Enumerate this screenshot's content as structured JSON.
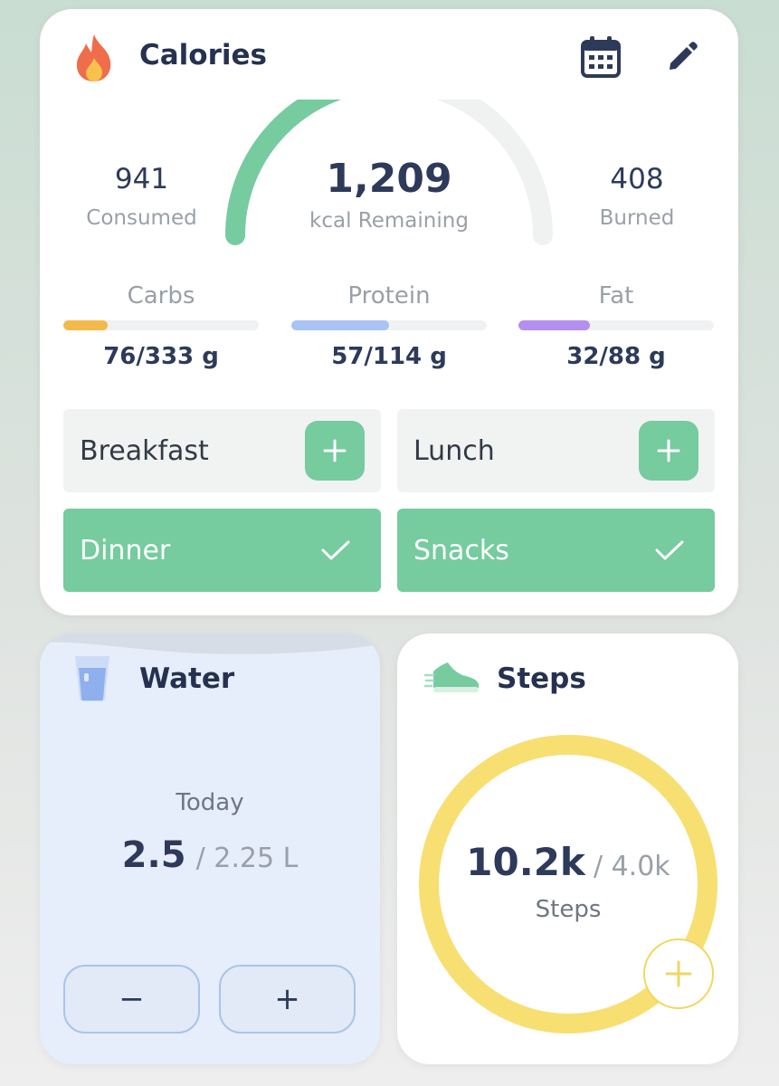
{
  "calories": {
    "title": "Calories",
    "consumed_value": "941",
    "consumed_label": "Consumed",
    "remaining_value": "1,209",
    "remaining_label": "kcal Remaining",
    "burned_value": "408",
    "burned_label": "Burned",
    "gauge_fraction": 0.44,
    "macros": [
      {
        "name": "Carbs",
        "value": "76/333 g",
        "fraction": 0.228,
        "color": "#f3b94b"
      },
      {
        "name": "Protein",
        "value": "57/114 g",
        "fraction": 0.5,
        "color": "#a9c3f3"
      },
      {
        "name": "Fat",
        "value": "32/88 g",
        "fraction": 0.364,
        "color": "#b48ff0"
      }
    ],
    "meals": [
      {
        "label": "Breakfast",
        "state": "add"
      },
      {
        "label": "Lunch",
        "state": "add"
      },
      {
        "label": "Dinner",
        "state": "done"
      },
      {
        "label": "Snacks",
        "state": "done"
      }
    ],
    "icons": {
      "header": "flame-icon",
      "calendar": "calendar-icon",
      "edit": "pencil-icon"
    }
  },
  "water": {
    "title": "Water",
    "period_label": "Today",
    "current": "2.5",
    "goal": "/ 2.25 L",
    "minus_label": "−",
    "plus_label": "+"
  },
  "steps": {
    "title": "Steps",
    "current": "10.2k",
    "goal": "/ 4.0k",
    "unit_label": "Steps",
    "ring_fraction": 1.0,
    "add_label": "+"
  },
  "colors": {
    "accent_green": "#76cb9f",
    "steps_yellow": "#f8df72",
    "text_dark": "#2d3a5a",
    "muted": "#9aa0a8"
  }
}
